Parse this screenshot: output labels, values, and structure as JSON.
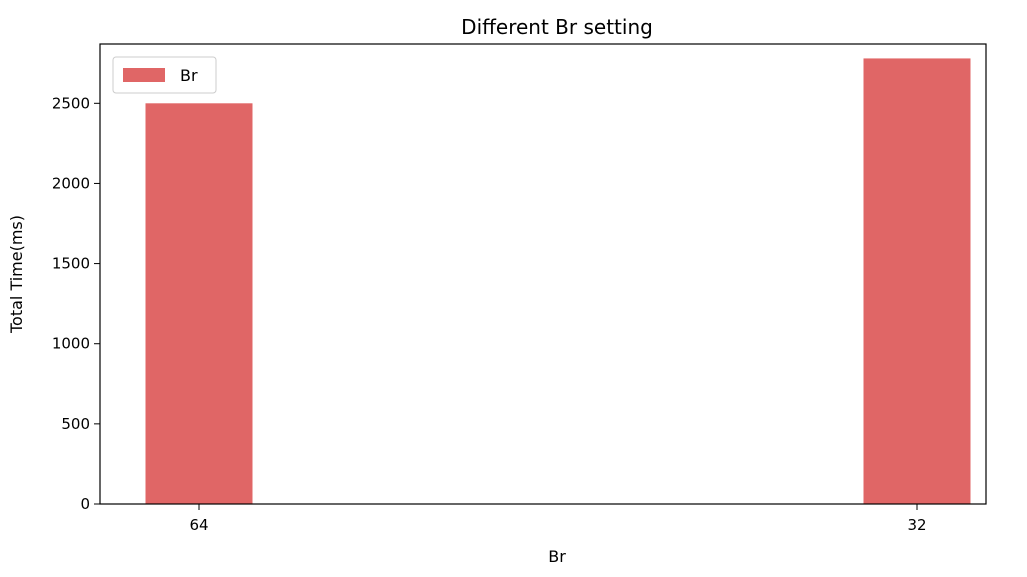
{
  "chart_data": {
    "type": "bar",
    "title": "Different Br setting",
    "xlabel": "Br",
    "ylabel": "Total Time(ms)",
    "categories": [
      "64",
      "32"
    ],
    "series": [
      {
        "name": "Br",
        "values": [
          2500,
          2780
        ],
        "color": "#e06666"
      }
    ],
    "ylim": [
      0,
      2870
    ],
    "yticks": [
      0,
      500,
      1000,
      1500,
      2000,
      2500
    ],
    "grid": false,
    "legend": "upper left"
  }
}
